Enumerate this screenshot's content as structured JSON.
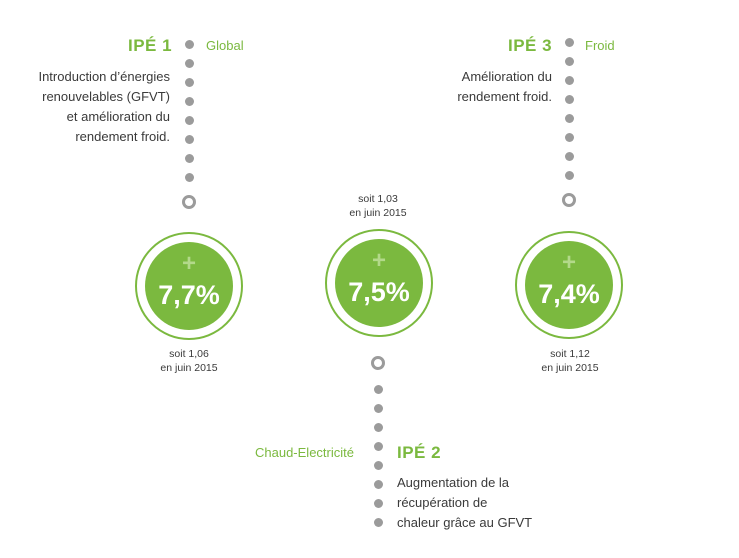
{
  "ipe1": {
    "title": "IPÉ 1",
    "category": "Global",
    "description": [
      "Introduction d’énergies",
      "renouvelables (GFVT)",
      "et amélioration du",
      "rendement froid."
    ],
    "value": "7,7%",
    "note_line1": "soit 1,06",
    "note_line2": "en juin 2015"
  },
  "ipe2": {
    "title": "IPÉ 2",
    "category": "Chaud-Electricité",
    "description": [
      "Augmentation de la",
      "récupération de",
      "chaleur grâce au GFVT"
    ],
    "value": "7,5%",
    "note_line1": "soit 1,03",
    "note_line2": "en juin 2015"
  },
  "ipe3": {
    "title": "IPÉ 3",
    "category": "Froid",
    "description": [
      "Amélioration du",
      "rendement froid."
    ],
    "value": "7,4%",
    "note_line1": "soit 1,12",
    "note_line2": "en juin 2015"
  },
  "plus_symbol": "+",
  "colors": {
    "accent": "#7bb93f",
    "dots": "#9b9b9b",
    "text": "#3a3a3a"
  }
}
